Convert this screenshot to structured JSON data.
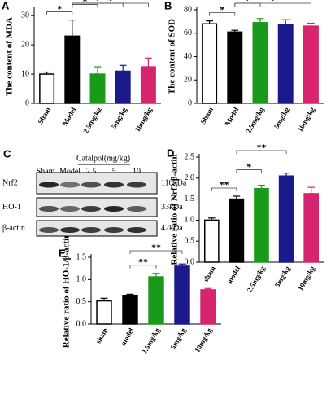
{
  "chart_data": [
    {
      "type": "bar",
      "panel": "A",
      "ylabel": "The content of MDA",
      "categories": [
        "Sham",
        "Model",
        "2.5mg/kg",
        "5mg/kg",
        "10mg/kg"
      ],
      "values": [
        10,
        23,
        10,
        11,
        12.5
      ],
      "errors": [
        0.7,
        5.5,
        2.5,
        2,
        3
      ],
      "colors": [
        "#ffffff",
        "#000000",
        "#1a9a1a",
        "#1a1a8c",
        "#d6246e"
      ],
      "ylim": [
        0,
        32
      ],
      "yticks": [
        0,
        10,
        20,
        30
      ],
      "annotations": [
        {
          "text": "*",
          "between": [
            0,
            1
          ]
        },
        {
          "text": "*",
          "between": [
            1,
            2
          ]
        },
        {
          "text": "*",
          "between": [
            1,
            3
          ]
        },
        {
          "text": "*",
          "between": [
            1,
            4
          ]
        }
      ]
    },
    {
      "type": "bar",
      "panel": "B",
      "ylabel": "The content of SOD",
      "categories": [
        "Sham",
        "Model",
        "2.5mg/kg",
        "5mg/kg",
        "10mg/kg"
      ],
      "values": [
        68,
        61,
        69,
        67,
        66
      ],
      "errors": [
        2.5,
        1.5,
        3.5,
        4.5,
        2.5
      ],
      "colors": [
        "#ffffff",
        "#000000",
        "#1a9a1a",
        "#1a1a8c",
        "#d6246e"
      ],
      "ylim": [
        0,
        80
      ],
      "yticks": [
        0,
        20,
        40,
        60,
        80
      ],
      "annotations": [
        {
          "text": "*",
          "between": [
            0,
            1
          ]
        },
        {
          "text": "*",
          "between": [
            1,
            2
          ]
        },
        {
          "text": "*",
          "between": [
            1,
            4
          ]
        }
      ]
    },
    {
      "type": "bar",
      "panel": "D",
      "ylabel": "Relative ratio of Nrf2/β-actin",
      "categories": [
        "sham",
        "model",
        "2.5mg/kg",
        "5mg/kg",
        "10mg/kg"
      ],
      "values": [
        1.0,
        1.5,
        1.75,
        2.05,
        1.63
      ],
      "errors": [
        0.05,
        0.07,
        0.08,
        0.07,
        0.15
      ],
      "colors": [
        "#ffffff",
        "#000000",
        "#1a9a1a",
        "#1a1a8c",
        "#d6246e"
      ],
      "ylim": [
        0,
        2.5
      ],
      "yticks": [
        {
          "value": 0,
          "label": "0.0"
        },
        0.5,
        {
          "value": 1,
          "label": "1.0"
        },
        1.5,
        {
          "value": 2,
          "label": "2.0"
        },
        2.5
      ],
      "annotations": [
        {
          "text": "**",
          "between": [
            0,
            1
          ]
        },
        {
          "text": "*",
          "between": [
            1,
            2
          ]
        },
        {
          "text": "**",
          "between": [
            1,
            3
          ]
        }
      ]
    },
    {
      "type": "bar",
      "panel": "E",
      "ylabel": "Relative ratio of HO-1/β-actin",
      "categories": [
        "sham",
        "model",
        "2.5mg/kg",
        "5mg/kg",
        "10mg/kg"
      ],
      "values": [
        0.52,
        0.63,
        1.06,
        1.3,
        0.77
      ],
      "errors": [
        0.06,
        0.04,
        0.08,
        0.05,
        0.03
      ],
      "colors": [
        "#ffffff",
        "#000000",
        "#1a9a1a",
        "#1a1a8c",
        "#d6246e"
      ],
      "ylim": [
        0,
        1.5
      ],
      "yticks": [
        {
          "value": 0,
          "label": "0.0"
        },
        0.5,
        {
          "value": 1,
          "label": "1.0"
        },
        1.5
      ],
      "annotations": [
        {
          "text": "**",
          "between": [
            1,
            2
          ]
        },
        {
          "text": "**",
          "between": [
            1,
            3
          ]
        }
      ]
    }
  ],
  "blot": {
    "panel": "C",
    "group": "Catalpol(mg/kg)",
    "lanes": [
      "Sham",
      "Model",
      "2.5",
      "5",
      "10"
    ],
    "rows": [
      {
        "name": "Nrf2",
        "size": "110kDa"
      },
      {
        "name": "HO-1",
        "size": "33kDa"
      },
      {
        "name": "β-actin",
        "size": "42kDa"
      }
    ]
  }
}
